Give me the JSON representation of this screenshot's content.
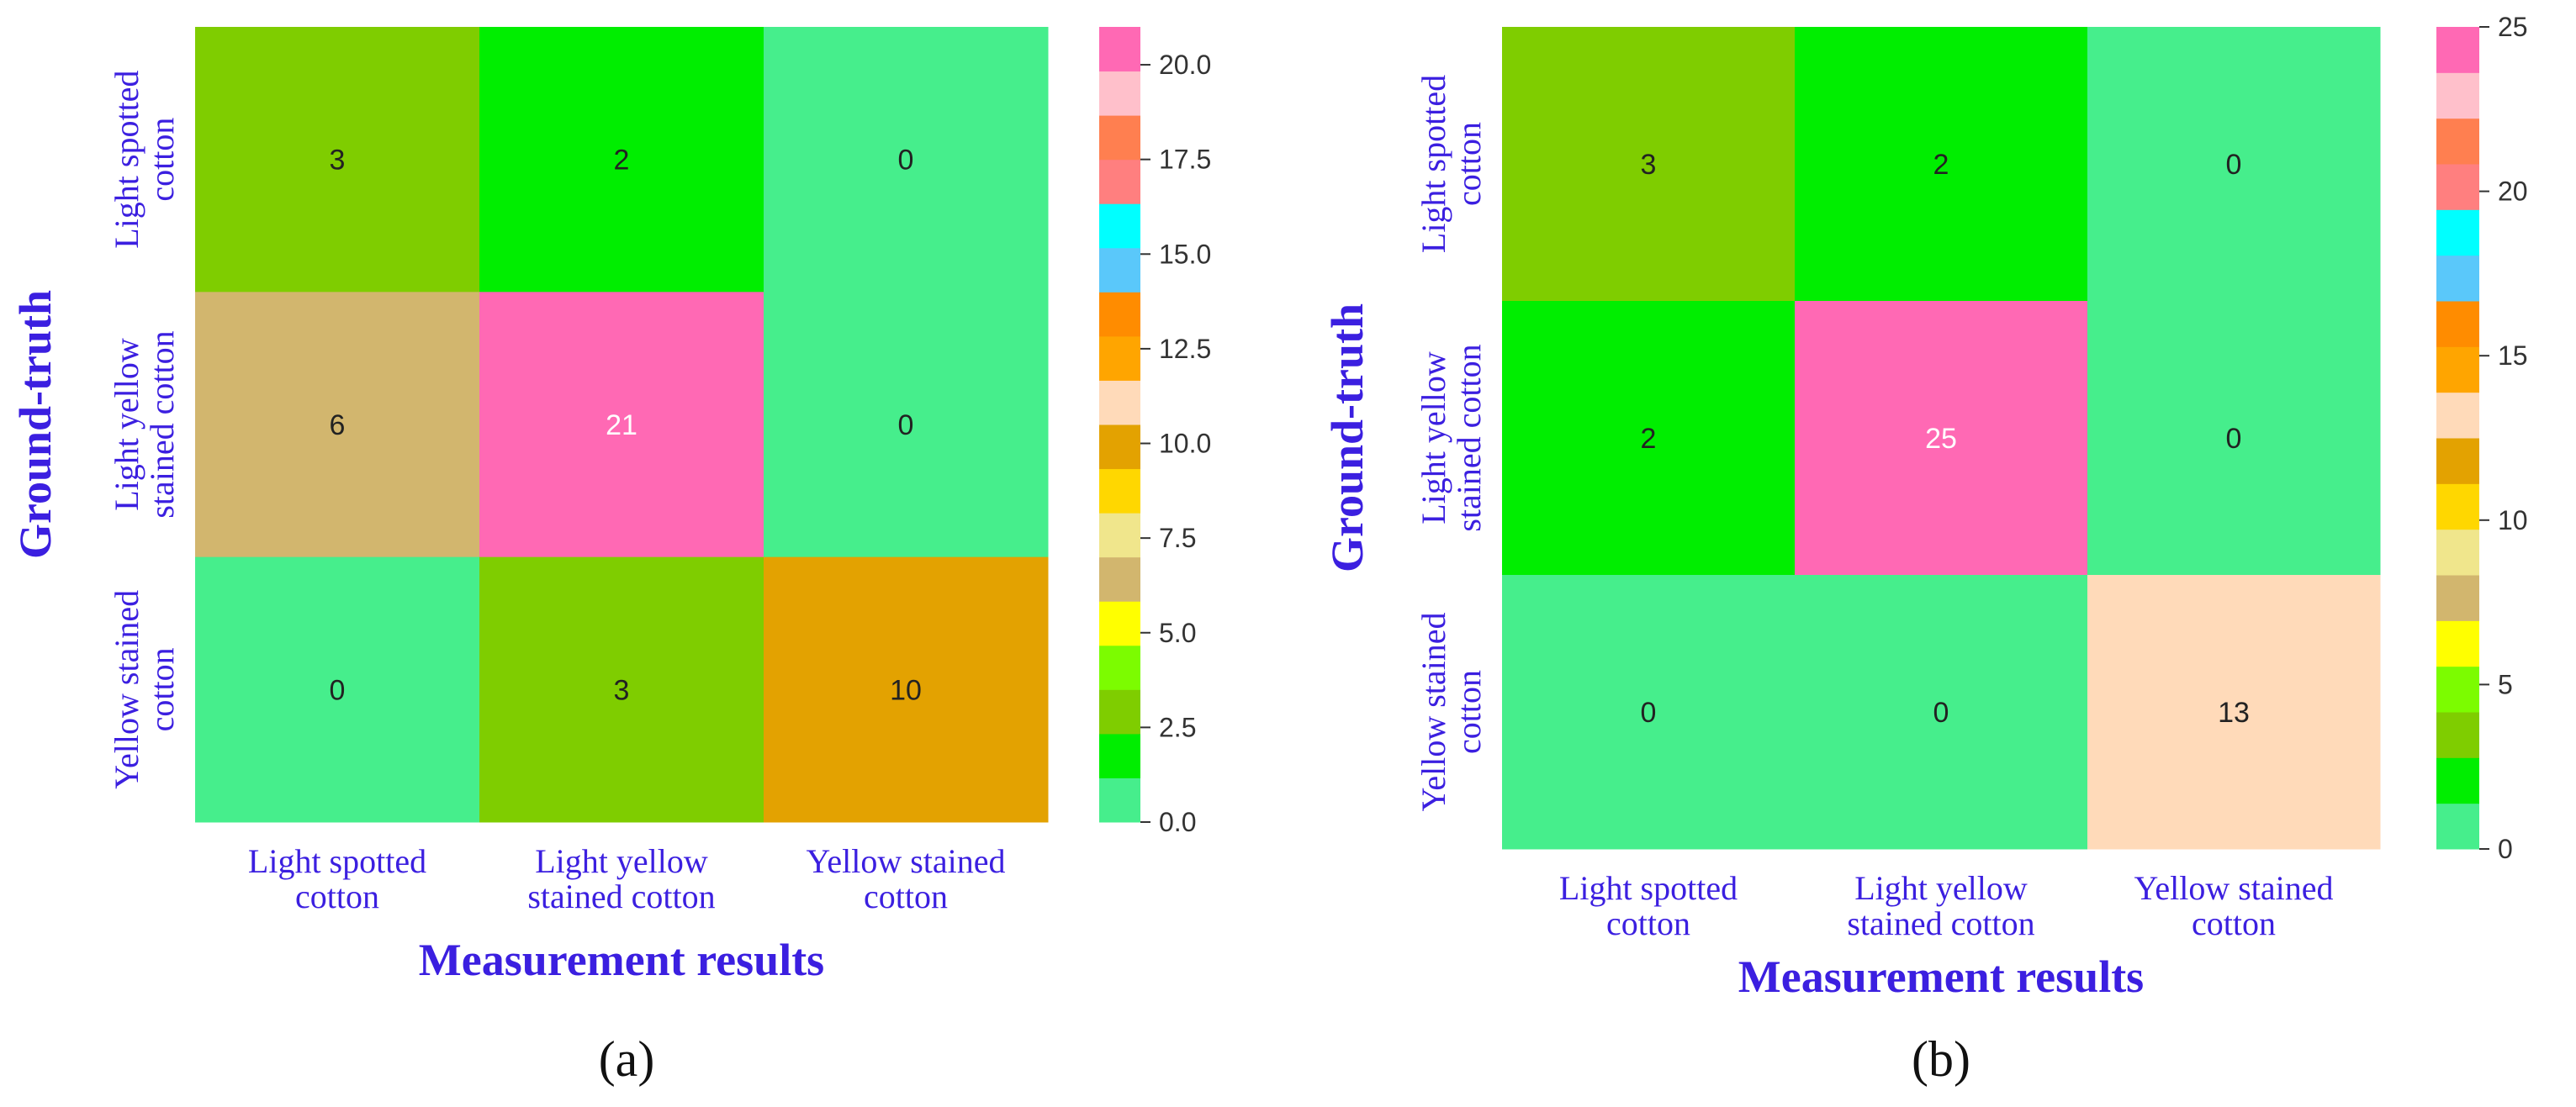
{
  "chart_data": [
    {
      "type": "heatmap",
      "panel_label": "(a)",
      "title": "",
      "xlabel": "Measurement results",
      "ylabel": "Ground-truth",
      "x_categories": [
        [
          "Light spotted",
          "cotton"
        ],
        [
          "Light yellow",
          "stained cotton"
        ],
        [
          "Yellow stained",
          "cotton"
        ]
      ],
      "y_categories": [
        [
          "Light spotted",
          "cotton"
        ],
        [
          "Light yellow",
          "stained cotton"
        ],
        [
          "Yellow stained",
          "cotton"
        ]
      ],
      "matrix": [
        [
          3,
          2,
          0
        ],
        [
          6,
          21,
          0
        ],
        [
          0,
          3,
          10
        ]
      ],
      "colorbar": {
        "vmin": 0,
        "vmax": 21.0,
        "ticks": [
          0.0,
          2.5,
          5.0,
          7.5,
          10.0,
          12.5,
          15.0,
          17.5,
          20.0
        ],
        "tick_labels": [
          "0.0",
          "2.5",
          "5.0",
          "7.5",
          "10.0",
          "12.5",
          "15.0",
          "17.5",
          "20.0"
        ]
      }
    },
    {
      "type": "heatmap",
      "panel_label": "(b)",
      "title": "",
      "xlabel": "Measurement results",
      "ylabel": "Ground-truth",
      "x_categories": [
        [
          "Light spotted",
          "cotton"
        ],
        [
          "Light yellow",
          "stained cotton"
        ],
        [
          "Yellow stained",
          "cotton"
        ]
      ],
      "y_categories": [
        [
          "Light spotted",
          "cotton"
        ],
        [
          "Light yellow",
          "stained cotton"
        ],
        [
          "Yellow stained",
          "cotton"
        ]
      ],
      "matrix": [
        [
          3,
          2,
          0
        ],
        [
          2,
          25,
          0
        ],
        [
          0,
          0,
          13
        ]
      ],
      "colorbar": {
        "vmin": 0,
        "vmax": 25,
        "ticks": [
          0,
          5,
          10,
          15,
          20,
          25
        ],
        "tick_labels": [
          "0",
          "5",
          "10",
          "15",
          "20",
          "25"
        ]
      }
    }
  ],
  "colormap": [
    "#46EE8C",
    "#00EE00",
    "#7FCD00",
    "#7CFC00",
    "#FFFF00",
    "#D2B66E",
    "#F0E68C",
    "#FFD700",
    "#E3A201",
    "#FFDAB9",
    "#FFA500",
    "#FF8C00",
    "#5AC8FA",
    "#00FFFF",
    "#FF7F7F",
    "#FF7F50",
    "#FFC0CB",
    "#FF69B4"
  ],
  "colors": {
    "label_color": "#3B1FE0",
    "axis_text": "#333333",
    "bright_cell_text": "#ffffff",
    "dark_cell_text": "#222222"
  }
}
